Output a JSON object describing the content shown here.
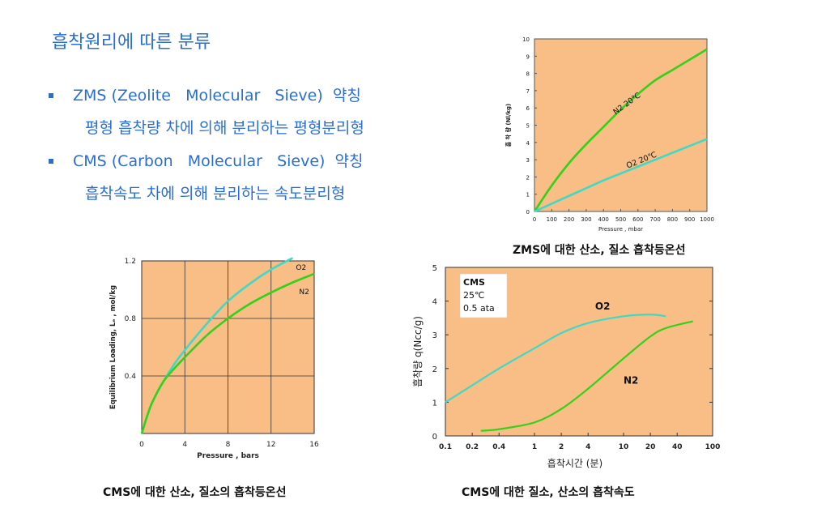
{
  "slide": {
    "title": "흡착원리에 따른 분류",
    "bullets": [
      {
        "text": "ZMS (Zeolite   Molecular   Sieve)  약칭",
        "sub": "평형 흡착량 차에 의해 분리하는 평형분리형"
      },
      {
        "text": "CMS (Carbon   Molecular   Sieve)  약칭",
        "sub": "흡착속도 차에 의해 분리하는 속도분리형"
      }
    ],
    "captions": {
      "zms": "ZMS에 대한 산소, 질소 흡착등온선",
      "cms_iso": "CMS에 대한 산소, 질소의 흡착등온선",
      "cms_rate": "CMS에 대한 질소, 산소의 흡착속도"
    }
  },
  "colors": {
    "bg": "#f8be86",
    "o2": "#3fd9c5",
    "n2": "#33d11a",
    "accent": "#2a6fd0"
  },
  "chart_data": [
    {
      "type": "line",
      "xlabel": "Pressure , mbar",
      "ylabel": "흡 착 량  (Nl/kg)",
      "xlim": [
        0,
        1000
      ],
      "ylim": [
        0,
        10
      ],
      "xticks": [
        "0",
        "100",
        "200",
        "300",
        "400",
        "500",
        "600",
        "700",
        "800",
        "900",
        "1000"
      ],
      "yticks": [
        "0",
        "1",
        "2",
        "3",
        "4",
        "5",
        "6",
        "7",
        "8",
        "9",
        "10"
      ],
      "series": [
        {
          "name": "N2 20℃",
          "x": [
            0,
            100,
            200,
            300,
            400,
            500,
            600,
            700,
            800,
            900,
            1000
          ],
          "y": [
            0,
            1.5,
            2.8,
            3.9,
            4.9,
            5.9,
            6.8,
            7.6,
            8.2,
            8.8,
            9.4
          ]
        },
        {
          "name": "O2 20℃",
          "x": [
            0,
            100,
            200,
            300,
            400,
            500,
            600,
            700,
            800,
            900,
            1000
          ],
          "y": [
            0,
            0.45,
            0.9,
            1.35,
            1.8,
            2.2,
            2.6,
            3.0,
            3.4,
            3.8,
            4.2
          ]
        }
      ]
    },
    {
      "type": "line",
      "xlabel": "Pressure , bars",
      "ylabel": "Equilibrium Loading, Lₑ , mol/kg",
      "xlim": [
        0,
        16
      ],
      "ylim": [
        0,
        1.2
      ],
      "xticks": [
        "0",
        "4",
        "8",
        "12",
        "16"
      ],
      "yticks": [
        "0.4",
        "0.8",
        "1.2"
      ],
      "series": [
        {
          "name": "O2",
          "x": [
            0,
            0.5,
            1,
            2,
            3,
            4,
            6,
            8,
            10,
            12,
            14
          ],
          "y": [
            0,
            0.12,
            0.22,
            0.36,
            0.48,
            0.58,
            0.76,
            0.92,
            1.04,
            1.14,
            1.22
          ]
        },
        {
          "name": "N2",
          "x": [
            0,
            0.5,
            1,
            2,
            3,
            4,
            6,
            8,
            10,
            12,
            14,
            16
          ],
          "y": [
            0,
            0.12,
            0.22,
            0.36,
            0.45,
            0.53,
            0.68,
            0.8,
            0.9,
            0.98,
            1.05,
            1.11
          ]
        }
      ]
    },
    {
      "type": "line",
      "xscale": "log",
      "xlabel": "흡착시간 (분)",
      "ylabel": "흡착량  q(Ncc/g)",
      "xlim": [
        0.1,
        100
      ],
      "ylim": [
        0,
        5
      ],
      "xticks": [
        "0.1",
        "0.2",
        "0.4",
        "1",
        "2",
        "4",
        "10",
        "20",
        "40",
        "100"
      ],
      "yticks": [
        "0",
        "1",
        "2",
        "3",
        "4",
        "5"
      ],
      "legend_box": [
        "CMS",
        "25℃",
        "0.5 ata"
      ],
      "series": [
        {
          "name": "O2",
          "x": [
            0.1,
            0.2,
            0.4,
            1,
            2,
            4,
            10,
            20,
            30
          ],
          "y": [
            1.0,
            1.5,
            2.0,
            2.6,
            3.05,
            3.35,
            3.55,
            3.6,
            3.55
          ]
        },
        {
          "name": "N2",
          "x": [
            0.25,
            0.4,
            1,
            2,
            4,
            10,
            20,
            30,
            60
          ],
          "y": [
            0.15,
            0.2,
            0.4,
            0.8,
            1.4,
            2.3,
            2.95,
            3.2,
            3.4
          ]
        }
      ]
    }
  ]
}
